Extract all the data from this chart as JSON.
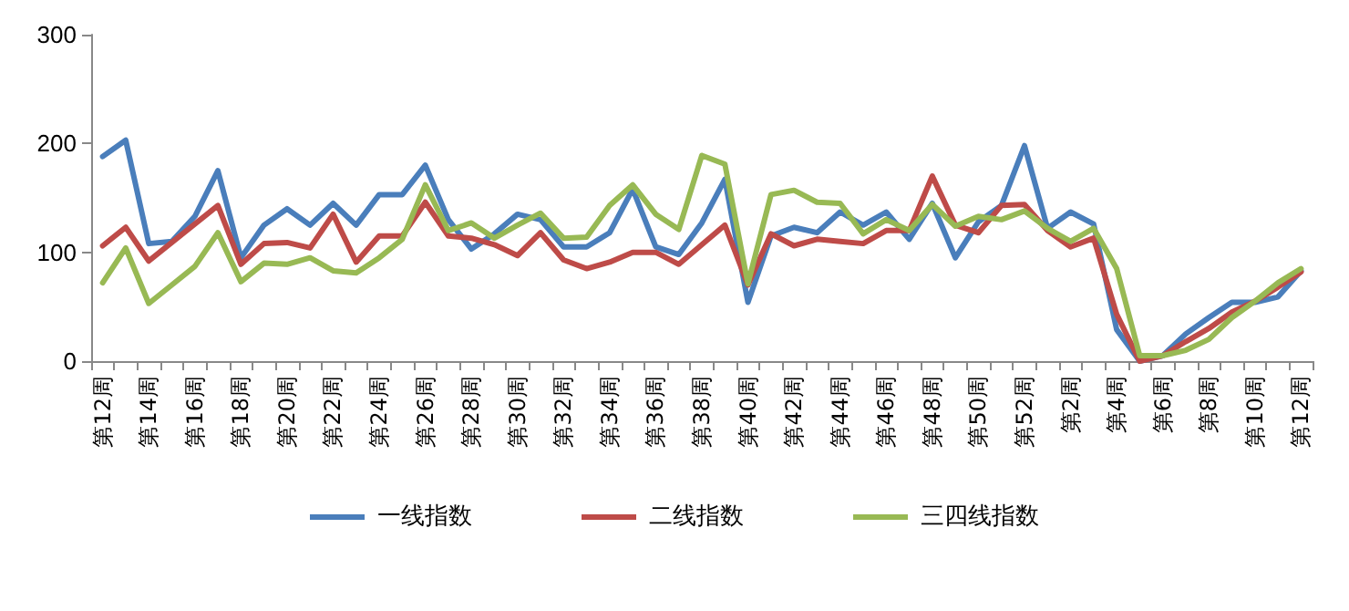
{
  "chart_data": {
    "type": "line",
    "categories": [
      "第12周",
      null,
      "第14周",
      null,
      "第16周",
      null,
      "第18周",
      null,
      "第20周",
      null,
      "第22周",
      null,
      "第24周",
      null,
      "第26周",
      null,
      "第28周",
      null,
      "第30周",
      null,
      "第32周",
      null,
      "第34周",
      null,
      "第36周",
      null,
      "第38周",
      null,
      "第40周",
      null,
      "第42周",
      null,
      "第44周",
      null,
      "第46周",
      null,
      "第48周",
      null,
      "第50周",
      null,
      "第52周",
      null,
      "第2周",
      null,
      "第4周",
      null,
      "第6周",
      null,
      "第8周",
      null,
      "第10周",
      null,
      "第12周"
    ],
    "series": [
      {
        "name": "一线指数",
        "color": "#4a7ebb",
        "values": [
          188,
          203,
          108,
          110,
          133,
          175,
          95,
          125,
          140,
          125,
          145,
          125,
          153,
          153,
          180,
          130,
          103,
          117,
          135,
          130,
          105,
          105,
          118,
          158,
          105,
          98,
          127,
          167,
          54,
          115,
          123,
          118,
          137,
          125,
          137,
          112,
          145,
          95,
          128,
          143,
          198,
          122,
          137,
          126,
          29,
          0,
          5,
          25,
          40,
          54,
          54,
          59,
          83
        ]
      },
      {
        "name": "二线指数",
        "color": "#be4b48",
        "values": [
          106,
          123,
          92,
          109,
          126,
          143,
          89,
          108,
          109,
          104,
          135,
          91,
          115,
          115,
          146,
          115,
          113,
          107,
          97,
          118,
          93,
          85,
          91,
          100,
          100,
          89,
          107,
          125,
          70,
          117,
          106,
          112,
          110,
          108,
          120,
          120,
          170,
          125,
          118,
          143,
          144,
          120,
          105,
          113,
          43,
          0,
          5,
          18,
          30,
          45,
          55,
          68,
          82
        ]
      },
      {
        "name": "三四线指数",
        "color": "#98b954",
        "values": [
          72,
          104,
          53,
          70,
          87,
          118,
          73,
          90,
          89,
          95,
          83,
          81,
          95,
          112,
          162,
          120,
          127,
          113,
          125,
          136,
          113,
          114,
          143,
          162,
          135,
          121,
          189,
          181,
          71,
          153,
          157,
          146,
          145,
          117,
          130,
          120,
          144,
          124,
          133,
          130,
          138,
          122,
          110,
          122,
          85,
          5,
          5,
          10,
          20,
          40,
          55,
          72,
          85
        ]
      }
    ],
    "ylim": [
      0,
      300
    ],
    "yticks": [
      0,
      100,
      200,
      300
    ],
    "grid": false,
    "legend": "bottom",
    "marker": "none",
    "line_style": "solid"
  }
}
